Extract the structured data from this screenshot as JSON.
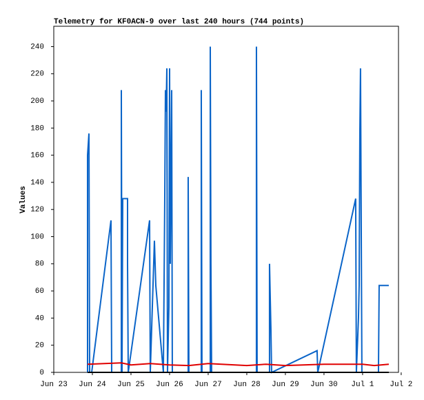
{
  "chart_data": {
    "type": "line",
    "title": "Telemetry for KF0ACN-9 over last 240 hours (744 points)",
    "y_label": "Values",
    "xlim": [
      0,
      8.93
    ],
    "xticks": [
      {
        "value": 0,
        "label": "Jun 23"
      },
      {
        "value": 1,
        "label": "Jun 24"
      },
      {
        "value": 2,
        "label": "Jun 25"
      },
      {
        "value": 3,
        "label": "Jun 26"
      },
      {
        "value": 4,
        "label": "Jun 27"
      },
      {
        "value": 5,
        "label": "Jun 28"
      },
      {
        "value": 6,
        "label": "Jun 29"
      },
      {
        "value": 7,
        "label": "Jun 30"
      },
      {
        "value": 8,
        "label": "Jul 1"
      },
      {
        "value": 9,
        "label": "Jul 2"
      }
    ],
    "ylim": [
      0,
      255
    ],
    "yticks": [
      0,
      20,
      40,
      60,
      80,
      100,
      120,
      140,
      160,
      180,
      200,
      220,
      240
    ],
    "series": [
      {
        "color": "#000000",
        "x": [
          0.875,
          8.679
        ],
        "values": [
          0,
          0
        ]
      },
      {
        "color": "#e00000",
        "x": [
          0.875,
          1.75,
          2,
          2.5,
          3,
          3.5,
          4,
          5,
          5.5,
          6,
          7,
          8,
          8.3,
          8.679
        ],
        "values": [
          6,
          7,
          5.5,
          6.5,
          5.5,
          5,
          6.5,
          5,
          6,
          5,
          6,
          6,
          5,
          6
        ]
      },
      {
        "color": "#0a64c8",
        "x": [
          0.875,
          0.875,
          0.911,
          0.929,
          0.982,
          1.482,
          1.5,
          1.75,
          1.75,
          1.768,
          1.786,
          1.911,
          1.911,
          1.929,
          2.482,
          2.5,
          2.607,
          2.643,
          2.839,
          2.875,
          2.893,
          2.911,
          2.929,
          2.946,
          2.982,
          3.0,
          3.018,
          3.054,
          3.071,
          3.482,
          3.482,
          3.5,
          3.821,
          3.821,
          3.839,
          4.054,
          4.054,
          4.071,
          4.089,
          5.25,
          5.25,
          5.268,
          5.589,
          5.589,
          5.625,
          5.643,
          6.821,
          6.839,
          7.821,
          7.839,
          7.893,
          7.911,
          7.929,
          7.946,
          7.964,
          7.982,
          8.411,
          8.429,
          8.679
        ],
        "values": [
          0,
          160,
          176,
          0,
          0,
          112,
          0,
          0,
          208,
          0,
          128,
          128,
          80,
          0,
          112,
          0,
          97,
          64,
          0,
          128,
          208,
          192,
          224,
          0,
          48,
          224,
          80,
          208,
          0,
          0,
          144,
          0,
          0,
          208,
          0,
          0,
          240,
          80,
          0,
          0,
          240,
          0,
          0,
          80,
          32,
          0,
          16,
          0,
          128,
          0,
          40,
          64,
          176,
          224,
          112,
          0,
          0,
          64,
          64
        ]
      }
    ]
  }
}
